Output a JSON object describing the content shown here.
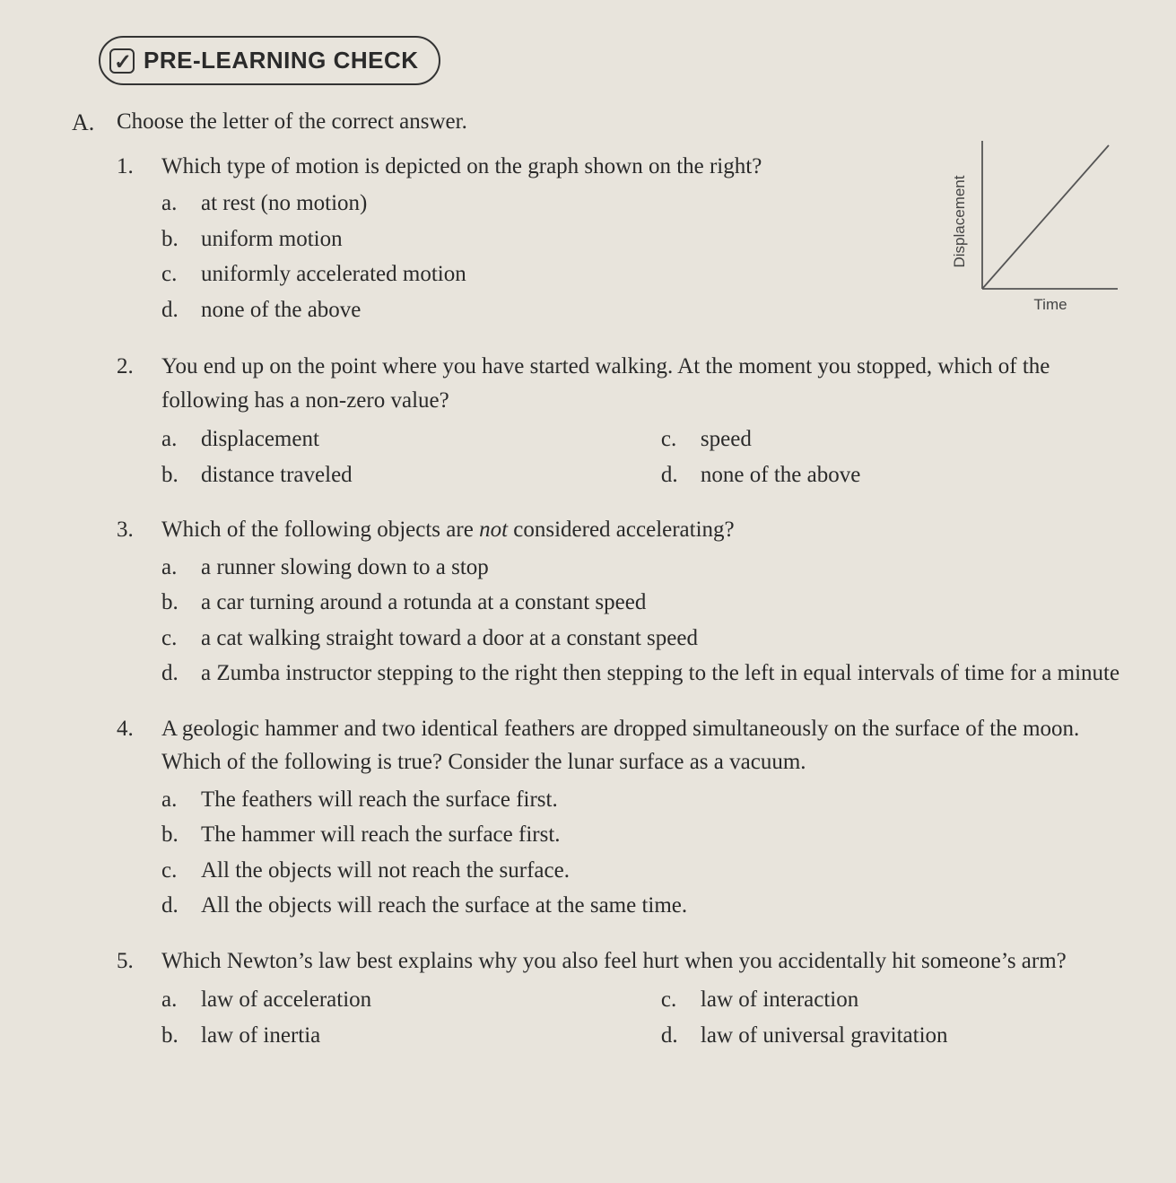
{
  "header": {
    "title": "PRE-LEARNING CHECK"
  },
  "section": {
    "letter": "A.",
    "instruction": "Choose the letter of the correct answer."
  },
  "graph": {
    "y_label": "Displacement",
    "x_label": "Time",
    "axis_color": "#555",
    "line_color": "#555",
    "line_width": 1.8,
    "width": 170,
    "height": 170
  },
  "questions": [
    {
      "num": "1.",
      "stem": "Which type of motion is depicted on the graph shown on the right?",
      "layout": "with-graph",
      "choices": [
        {
          "letter": "a.",
          "text": "at rest (no motion)"
        },
        {
          "letter": "b.",
          "text": "uniform motion"
        },
        {
          "letter": "c.",
          "text": "uniformly accelerated motion"
        },
        {
          "letter": "d.",
          "text": "none of the above"
        }
      ]
    },
    {
      "num": "2.",
      "stem": "You end up on the point where you have started walking. At the moment you stopped, which of the following has a non-zero value?",
      "layout": "two-col",
      "choices": [
        {
          "letter": "a.",
          "text": "displacement"
        },
        {
          "letter": "b.",
          "text": "distance traveled"
        },
        {
          "letter": "c.",
          "text": "speed"
        },
        {
          "letter": "d.",
          "text": "none of the above"
        }
      ]
    },
    {
      "num": "3.",
      "stem_html": "Which of the following objects are <span class=\"italic\">not</span> considered accelerating?",
      "layout": "single-col",
      "choices": [
        {
          "letter": "a.",
          "text": "a runner slowing down to a stop"
        },
        {
          "letter": "b.",
          "text": "a car turning around a rotunda at a constant speed"
        },
        {
          "letter": "c.",
          "text": "a cat walking straight toward a door at a constant speed"
        },
        {
          "letter": "d.",
          "text": "a Zumba instructor stepping to the right then stepping to the left in equal intervals of time for a minute"
        }
      ]
    },
    {
      "num": "4.",
      "stem": "A geologic hammer and two identical feathers are dropped simultaneously on the surface of the moon. Which of the following is true? Consider the lunar surface as a vacuum.",
      "layout": "single-col",
      "choices": [
        {
          "letter": "a.",
          "text": "The feathers will reach the surface first."
        },
        {
          "letter": "b.",
          "text": "The hammer will reach the surface first."
        },
        {
          "letter": "c.",
          "text": "All the objects will not reach the surface."
        },
        {
          "letter": "d.",
          "text": "All the objects will reach the surface at the same time."
        }
      ]
    },
    {
      "num": "5.",
      "stem": "Which Newton’s law best explains why you also feel hurt when you accidentally hit someone’s arm?",
      "layout": "two-col",
      "choices": [
        {
          "letter": "a.",
          "text": "law of acceleration"
        },
        {
          "letter": "b.",
          "text": "law of inertia"
        },
        {
          "letter": "c.",
          "text": "law of interaction"
        },
        {
          "letter": "d.",
          "text": "law of universal gravitation"
        }
      ]
    }
  ]
}
